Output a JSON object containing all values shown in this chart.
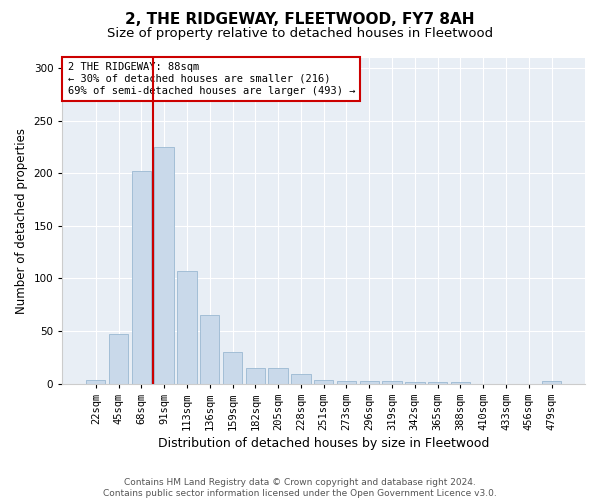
{
  "title": "2, THE RIDGEWAY, FLEETWOOD, FY7 8AH",
  "subtitle": "Size of property relative to detached houses in Fleetwood",
  "xlabel": "Distribution of detached houses by size in Fleetwood",
  "ylabel": "Number of detached properties",
  "bar_color": "#c9d9ea",
  "bar_edge_color": "#9ab8d2",
  "background_color": "#e8eef5",
  "grid_color": "#ffffff",
  "annotation_line1": "2 THE RIDGEWAY: 88sqm",
  "annotation_line2": "← 30% of detached houses are smaller (216)",
  "annotation_line3": "69% of semi-detached houses are larger (493) →",
  "annotation_box_color": "#ffffff",
  "annotation_edge_color": "#cc0000",
  "vline_color": "#cc0000",
  "categories": [
    "22sqm",
    "45sqm",
    "68sqm",
    "91sqm",
    "113sqm",
    "136sqm",
    "159sqm",
    "182sqm",
    "205sqm",
    "228sqm",
    "251sqm",
    "273sqm",
    "296sqm",
    "319sqm",
    "342sqm",
    "365sqm",
    "388sqm",
    "410sqm",
    "433sqm",
    "456sqm",
    "479sqm"
  ],
  "values": [
    3,
    47,
    202,
    225,
    107,
    65,
    30,
    15,
    15,
    9,
    3,
    2,
    2,
    2,
    1,
    1,
    1,
    0,
    0,
    0,
    2
  ],
  "ylim": [
    0,
    310
  ],
  "yticks": [
    0,
    50,
    100,
    150,
    200,
    250,
    300
  ],
  "vline_bin_index": 3,
  "footnote_line1": "Contains HM Land Registry data © Crown copyright and database right 2024.",
  "footnote_line2": "Contains public sector information licensed under the Open Government Licence v3.0.",
  "title_fontsize": 11,
  "subtitle_fontsize": 9.5,
  "xlabel_fontsize": 9,
  "ylabel_fontsize": 8.5,
  "tick_fontsize": 7.5,
  "annotation_fontsize": 7.5,
  "footnote_fontsize": 6.5
}
